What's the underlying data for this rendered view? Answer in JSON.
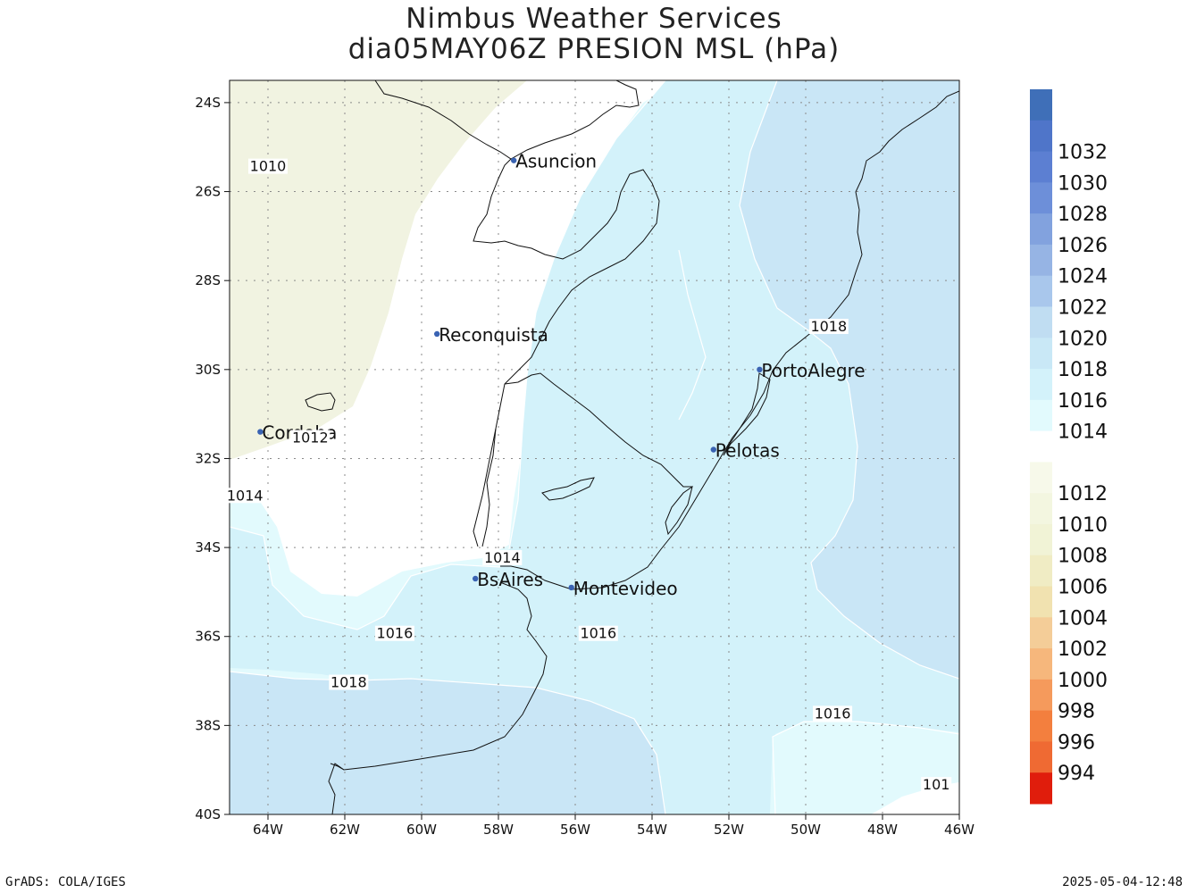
{
  "title": {
    "line1": "Nimbus Weather Services",
    "line2": "dia05MAY06Z PRESION MSL (hPa)"
  },
  "footer": {
    "left": "GrADS: COLA/IGES",
    "right": "2025-05-04-12:48"
  },
  "map": {
    "lon_range": [
      -65,
      -46
    ],
    "lat_range": [
      -40,
      -23.5
    ],
    "lon_ticks": [
      {
        "value": -64,
        "label": "64W"
      },
      {
        "value": -62,
        "label": "62W"
      },
      {
        "value": -60,
        "label": "60W"
      },
      {
        "value": -58,
        "label": "58W"
      },
      {
        "value": -56,
        "label": "56W"
      },
      {
        "value": -54,
        "label": "54W"
      },
      {
        "value": -52,
        "label": "52W"
      },
      {
        "value": -50,
        "label": "50W"
      },
      {
        "value": -48,
        "label": "48W"
      },
      {
        "value": -46,
        "label": "46W"
      }
    ],
    "lat_ticks": [
      {
        "value": -24,
        "label": "24S"
      },
      {
        "value": -26,
        "label": "26S"
      },
      {
        "value": -28,
        "label": "28S"
      },
      {
        "value": -30,
        "label": "30S"
      },
      {
        "value": -32,
        "label": "32S"
      },
      {
        "value": -34,
        "label": "34S"
      },
      {
        "value": -36,
        "label": "36S"
      },
      {
        "value": -38,
        "label": "38S"
      },
      {
        "value": -40,
        "label": "40S"
      }
    ],
    "grid": true,
    "cities": [
      {
        "name": "Asuncion",
        "lon": -57.6,
        "lat": -25.3
      },
      {
        "name": "Reconquista",
        "lon": -59.6,
        "lat": -29.2
      },
      {
        "name": "Cordoba",
        "lon": -64.2,
        "lat": -31.4
      },
      {
        "name": "PortoAlegre",
        "lon": -51.2,
        "lat": -30.0
      },
      {
        "name": "Pelotas",
        "lon": -52.4,
        "lat": -31.8
      },
      {
        "name": "BsAires",
        "lon": -58.6,
        "lat": -34.7
      },
      {
        "name": "Montevideo",
        "lon": -56.1,
        "lat": -34.9
      }
    ],
    "contour_labels": [
      {
        "text": "1010",
        "lon": -64.0,
        "lat": -25.5
      },
      {
        "text": "1012",
        "lon": -62.9,
        "lat": -31.6
      },
      {
        "text": "1014",
        "lon": -64.6,
        "lat": -32.9
      },
      {
        "text": "1014",
        "lon": -57.9,
        "lat": -34.3
      },
      {
        "text": "1016",
        "lon": -60.7,
        "lat": -36.0
      },
      {
        "text": "1016",
        "lon": -55.4,
        "lat": -36.0
      },
      {
        "text": "1018",
        "lon": -61.9,
        "lat": -37.1
      },
      {
        "text": "1018",
        "lon": -49.4,
        "lat": -29.1
      },
      {
        "text": "1016",
        "lon": -49.3,
        "lat": -37.8
      },
      {
        "text": "101",
        "lon": -46.6,
        "lat": -39.4
      }
    ]
  },
  "colorbar": {
    "entries": [
      {
        "label": "",
        "color": "#3f6fb8"
      },
      {
        "label": "1032",
        "color": "#4f75c9"
      },
      {
        "label": "1030",
        "color": "#5c7fd2"
      },
      {
        "label": "1028",
        "color": "#6d8fd9"
      },
      {
        "label": "1026",
        "color": "#82a2de"
      },
      {
        "label": "1024",
        "color": "#96b4e4"
      },
      {
        "label": "1022",
        "color": "#a9c7ec"
      },
      {
        "label": "1020",
        "color": "#c0ddf2"
      },
      {
        "label": "1018",
        "color": "#c9e8f6"
      },
      {
        "label": "1016",
        "color": "#d3f2fa"
      },
      {
        "label": "1014",
        "color": "#e2fafd"
      },
      {
        "label": "",
        "color": "#ffffff"
      },
      {
        "label": "1012",
        "color": "#f7f9ea"
      },
      {
        "label": "1010",
        "color": "#f3f6e0"
      },
      {
        "label": "1008",
        "color": "#f1f3d6"
      },
      {
        "label": "1006",
        "color": "#f0ecc4"
      },
      {
        "label": "1004",
        "color": "#f1e2b0"
      },
      {
        "label": "1002",
        "color": "#f4cd98"
      },
      {
        "label": "1000",
        "color": "#f6b77c"
      },
      {
        "label": "998",
        "color": "#f59a5c"
      },
      {
        "label": "996",
        "color": "#f37f3e"
      },
      {
        "label": "994",
        "color": "#ef6a33"
      },
      {
        "label": "",
        "color": "#e01d0c"
      }
    ]
  },
  "colors": {
    "band_1010": "#f1f3e1",
    "band_1012": "#ffffff",
    "band_1014": "#e2fafd",
    "band_1016": "#d3f2fa",
    "band_1018": "#c9e6f6",
    "city_dot": "#3a63b3"
  }
}
